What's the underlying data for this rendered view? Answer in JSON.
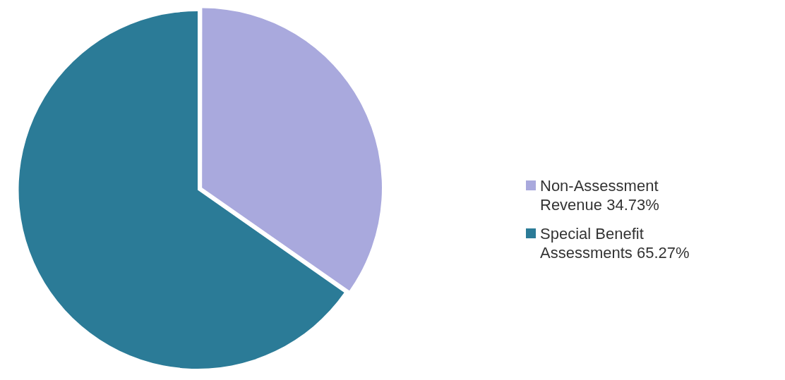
{
  "chart_data": {
    "type": "pie",
    "categories": [
      "Non-Assessment Revenue 34.73%",
      "Special Benefit Assessments 65.27%"
    ],
    "values": [
      34.73,
      65.27
    ],
    "colors": [
      "#a9a9dd",
      "#2b7b97"
    ],
    "legend": "right"
  }
}
